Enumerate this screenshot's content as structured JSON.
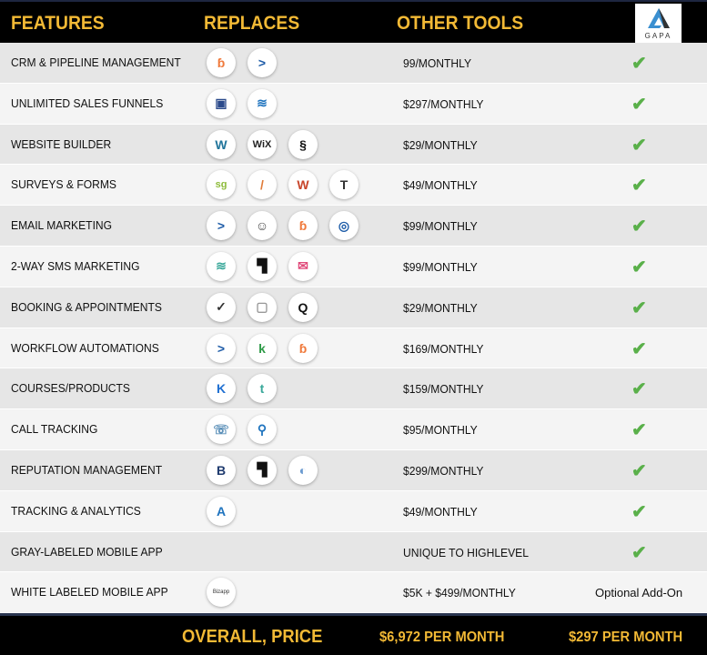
{
  "header": {
    "features": "FEATURES",
    "replaces": "REPLACES",
    "other_tools": "OTHER TOOLS",
    "logo_text": "GAPA"
  },
  "rows": [
    {
      "feature": "CRM & PIPELINE MANAGEMENT",
      "price": "99/MONTHLY",
      "icons": [
        {
          "name": "hubspot",
          "glyph": "ɓ",
          "color": "#f07a3c"
        },
        {
          "name": "activecampaign",
          "glyph": ">",
          "color": "#1e5ca8"
        }
      ],
      "included": true
    },
    {
      "feature": "UNLIMITED SALES FUNNELS",
      "price": "$297/MONTHLY",
      "icons": [
        {
          "name": "clickfunnels",
          "glyph": "▣",
          "color": "#2b4a8b"
        },
        {
          "name": "layers",
          "glyph": "≋",
          "color": "#1e73be"
        }
      ],
      "included": true
    },
    {
      "feature": "WEBSITE BUILDER",
      "price": "$29/MONTHLY",
      "icons": [
        {
          "name": "wordpress",
          "glyph": "W",
          "color": "#21759b"
        },
        {
          "name": "wix",
          "glyph": "WiX",
          "color": "#222"
        },
        {
          "name": "squarespace",
          "glyph": "§",
          "color": "#111"
        }
      ],
      "included": true
    },
    {
      "feature": "SURVEYS & FORMS",
      "price": "$49/MONTHLY",
      "icons": [
        {
          "name": "surveygizmo",
          "glyph": "sg",
          "color": "#8dbb3a"
        },
        {
          "name": "jotform",
          "glyph": "/",
          "color": "#e07b39"
        },
        {
          "name": "wufoo",
          "glyph": "W",
          "color": "#c8442a"
        },
        {
          "name": "typeform",
          "glyph": "T",
          "color": "#333"
        }
      ],
      "included": true
    },
    {
      "feature": "EMAIL MARKETING",
      "price": "$99/MONTHLY",
      "icons": [
        {
          "name": "activecampaign",
          "glyph": ">",
          "color": "#1e5ca8"
        },
        {
          "name": "mailchimp",
          "glyph": "☺",
          "color": "#444"
        },
        {
          "name": "hubspot",
          "glyph": "ɓ",
          "color": "#f07a3c"
        },
        {
          "name": "constant-contact",
          "glyph": "◎",
          "color": "#1e5ca8"
        }
      ],
      "included": true
    },
    {
      "feature": "2-WAY SMS MARKETING",
      "price": "$99/MONTHLY",
      "icons": [
        {
          "name": "layers",
          "glyph": "≋",
          "color": "#3aa89a"
        },
        {
          "name": "flag",
          "glyph": "▜",
          "color": "#111"
        },
        {
          "name": "envelope",
          "glyph": "✉",
          "color": "#e04a7a"
        }
      ],
      "included": true
    },
    {
      "feature": "BOOKING & APPOINTMENTS",
      "price": "$29/MONTHLY",
      "icons": [
        {
          "name": "calendly",
          "glyph": "✓",
          "color": "#333"
        },
        {
          "name": "calendar",
          "glyph": "▢",
          "color": "#999"
        },
        {
          "name": "acuity",
          "glyph": "Q",
          "color": "#111"
        }
      ],
      "included": true
    },
    {
      "feature": "WORKFLOW AUTOMATIONS",
      "price": "$169/MONTHLY",
      "icons": [
        {
          "name": "activecampaign",
          "glyph": ">",
          "color": "#1e5ca8"
        },
        {
          "name": "keap",
          "glyph": "k",
          "color": "#2e9b48"
        },
        {
          "name": "hubspot",
          "glyph": "ɓ",
          "color": "#f07a3c"
        }
      ],
      "included": true
    },
    {
      "feature": "COURSES/PRODUCTS",
      "price": "$159/MONTHLY",
      "icons": [
        {
          "name": "kajabi",
          "glyph": "K",
          "color": "#1f6fd1"
        },
        {
          "name": "teachable",
          "glyph": "t",
          "color": "#3aa89a"
        }
      ],
      "included": true
    },
    {
      "feature": "CALL TRACKING",
      "price": "$95/MONTHLY",
      "icons": [
        {
          "name": "callrail",
          "glyph": "☏",
          "color": "#5a8fb8"
        },
        {
          "name": "location-pin",
          "glyph": "⚲",
          "color": "#1e73be"
        }
      ],
      "included": true
    },
    {
      "feature": "REPUTATION MANAGEMENT",
      "price": "$299/MONTHLY",
      "icons": [
        {
          "name": "birdeye",
          "glyph": "B",
          "color": "#1e3a6e"
        },
        {
          "name": "flag",
          "glyph": "▜",
          "color": "#111"
        },
        {
          "name": "podium",
          "glyph": "◐",
          "color": "#6a9ad0"
        }
      ],
      "included": true
    },
    {
      "feature": "TRACKING & ANALYTICS",
      "price": "$49/MONTHLY",
      "icons": [
        {
          "name": "analytics",
          "glyph": "A",
          "color": "#1e73be"
        }
      ],
      "included": true
    },
    {
      "feature": "GRAY-LABELED MOBILE APP",
      "price": "UNIQUE TO HIGHLEVEL",
      "icons": [],
      "included": true
    },
    {
      "feature": "WHITE LABELED MOBILE APP",
      "price": "$5K + $499/MONTHLY",
      "icons": [
        {
          "name": "business-app",
          "glyph": "Bizapp",
          "color": "#333"
        }
      ],
      "included": false,
      "note": "Optional Add-On"
    }
  ],
  "footer": {
    "label": "OVERALL, PRICE",
    "other_total": "$6,972 PER MONTH",
    "gapa_total": "$297 PER MONTH"
  },
  "colors": {
    "accent": "#f2b935",
    "check": "#5ab04a"
  }
}
